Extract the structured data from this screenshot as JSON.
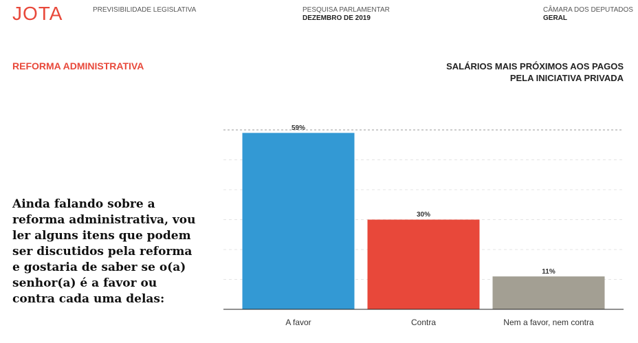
{
  "header": {
    "logo": "JOTA",
    "product": "PREVISIBILIDADE LEGISLATIVA",
    "survey": "PESQUISA PARLAMENTAR",
    "date": "DEZEMBRO DE 2019",
    "house": "CÂMARA DOS DEPUTADOS",
    "scope": "GERAL"
  },
  "section": "REFORMA ADMINISTRATIVA",
  "question": "Ainda falando sobre a reforma administrativa, vou ler alguns itens que podem ser discutidos pela reforma e gostaria de saber se o(a) senhor(a) é a favor ou contra cada uma delas:",
  "chart_data": {
    "type": "bar",
    "title": "SALÁRIOS MAIS PRÓXIMOS AOS PAGOS PELA INICIATIVA PRIVADA",
    "categories": [
      "A favor",
      "Contra",
      "Nem a favor, nem contra"
    ],
    "values": [
      59,
      30,
      11
    ],
    "value_labels": [
      "59%",
      "30%",
      "11%"
    ],
    "colors": [
      "#3399d4",
      "#e8483a",
      "#a39f93"
    ],
    "ylim": [
      0,
      60
    ],
    "yticks": [
      0,
      10,
      20,
      30,
      40,
      50,
      60
    ],
    "grid": true
  }
}
